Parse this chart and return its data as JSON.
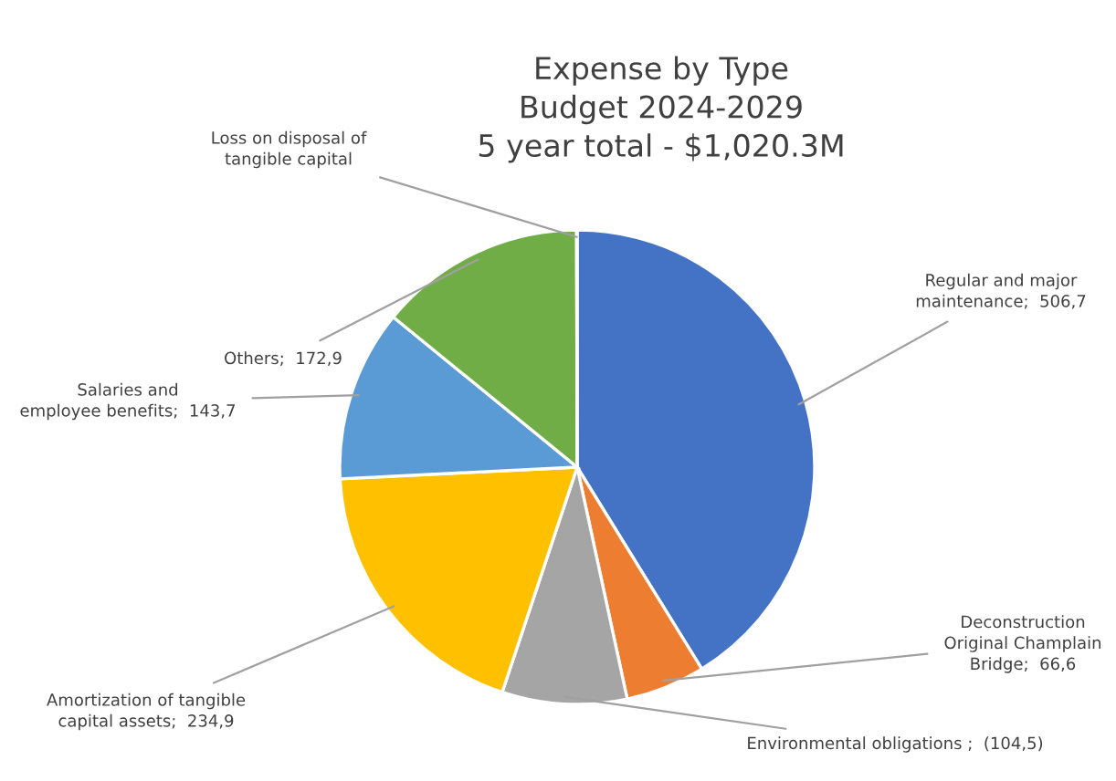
{
  "chart_data": {
    "type": "pie",
    "title": "Expense by Type\nBudget 2024-2029\n5 year total - $1,020.3M",
    "categories": [
      "Regular and major\nmaintenance",
      "Deconstruction\nOriginal Champlain\nBridge",
      "Environmental obligations",
      "Amortization of tangible\ncapital assets",
      "Salaries and\nemployee benefits",
      "Others",
      "Loss on disposal of\ntangible capital"
    ],
    "values": [
      506.7,
      66.6,
      104.5,
      234.9,
      143.7,
      172.9,
      0.5
    ],
    "value_labels": [
      "506,7",
      "66,6",
      "(104,5)",
      "234,9",
      "143,7",
      "172,9",
      null
    ],
    "colors": [
      "#4472c4",
      "#ed7d31",
      "#a5a5a5",
      "#ffc000",
      "#5b9bd5",
      "#70ad47",
      "#264478"
    ],
    "legend": false
  }
}
